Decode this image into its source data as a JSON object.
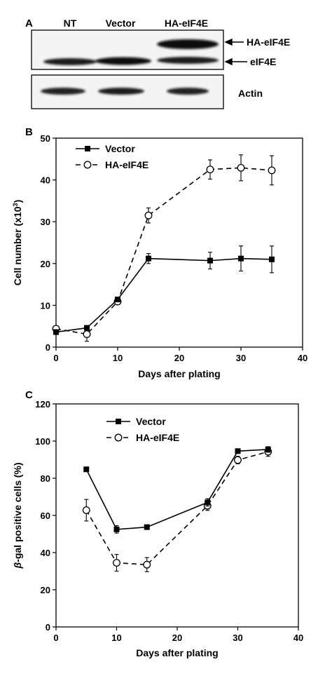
{
  "panel_a": {
    "label": "A",
    "lanes": [
      "NT",
      "Vector",
      "HA-eIF4E"
    ],
    "band_labels": {
      "ha": "HA-eIF4E",
      "eif4e": "eIF4E",
      "actin": "Actin"
    }
  },
  "chart_data": [
    {
      "panel": "B",
      "type": "line",
      "xlabel": "Days after plating",
      "ylabel": "Cell number (x10",
      "ylabel_sup": "3",
      "ylabel_close": ")",
      "xlim": [
        0,
        40
      ],
      "ylim": [
        0,
        50
      ],
      "xticks": [
        0,
        10,
        20,
        30,
        40
      ],
      "yticks": [
        0,
        10,
        20,
        30,
        40,
        50
      ],
      "legend": "top-left",
      "series": [
        {
          "name": "Vector",
          "marker": "filled-square",
          "dash": "solid",
          "x": [
            0,
            5,
            10,
            15,
            25,
            30,
            35
          ],
          "y": [
            3.6,
            4.6,
            11.4,
            21.2,
            20.7,
            21.2,
            21.0
          ],
          "err": [
            0.4,
            0.4,
            0.4,
            1.2,
            2.0,
            3.0,
            3.2
          ]
        },
        {
          "name": "HA-eIF4E",
          "marker": "open-circle",
          "dash": "dashed",
          "x": [
            0,
            5,
            10,
            15,
            25,
            30,
            35
          ],
          "y": [
            4.4,
            3.1,
            10.9,
            31.5,
            42.5,
            42.9,
            42.3
          ],
          "err": [
            0.4,
            1.7,
            0.4,
            1.8,
            2.3,
            3.1,
            3.5
          ]
        }
      ]
    },
    {
      "panel": "C",
      "type": "line",
      "xlabel": "Days after plating",
      "ylabel_greek": "β",
      "ylabel": "-gal positive cells (%)",
      "xlim": [
        0,
        40
      ],
      "ylim": [
        0,
        120
      ],
      "xticks": [
        0,
        10,
        20,
        30,
        40
      ],
      "yticks": [
        0,
        20,
        40,
        60,
        80,
        100,
        120
      ],
      "legend": "top-left",
      "series": [
        {
          "name": "Vector",
          "marker": "filled-square",
          "dash": "solid",
          "x": [
            5,
            10,
            15,
            25,
            30,
            35
          ],
          "y": [
            84.8,
            52.5,
            53.7,
            67.0,
            94.6,
            95.5
          ],
          "err": [
            0.8,
            2.0,
            0.8,
            2.0,
            0.8,
            1.5
          ]
        },
        {
          "name": "HA-eIF4E",
          "marker": "open-circle",
          "dash": "dashed",
          "x": [
            5,
            10,
            15,
            25,
            30,
            35
          ],
          "y": [
            62.8,
            34.5,
            33.5,
            65.2,
            89.8,
            94.3
          ],
          "err": [
            5.8,
            4.5,
            3.8,
            2.5,
            2.0,
            2.5
          ]
        }
      ]
    }
  ]
}
